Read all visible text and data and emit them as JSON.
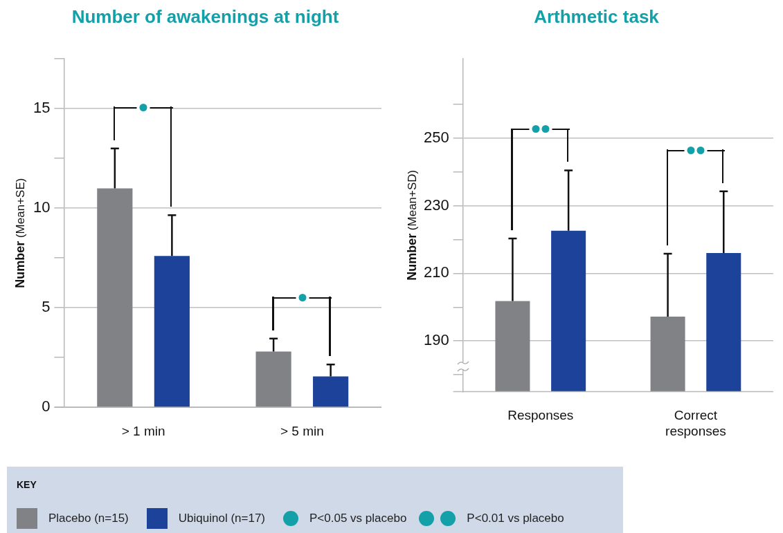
{
  "chart_data": [
    {
      "type": "bar",
      "title": "Number of awakenings at night",
      "ylabel": "Number (Mean+SE)",
      "categories": [
        "> 1 min",
        "> 5 min"
      ],
      "series": [
        {
          "name": "Placebo (n=15)",
          "color": "#808285",
          "values": [
            11.0,
            2.8
          ],
          "errors": [
            [
              11.0,
              13.0
            ],
            [
              2.8,
              3.45
            ]
          ]
        },
        {
          "name": "Ubiquinol (n=17)",
          "color": "#1d4299",
          "values": [
            7.6,
            1.55
          ],
          "errors": [
            [
              7.6,
              9.65
            ],
            [
              1.55,
              2.15
            ]
          ]
        }
      ],
      "ylim": [
        0,
        17.5
      ],
      "yticks": [
        0,
        {
          "value": 2.5,
          "label": null
        },
        5,
        {
          "value": 7.5,
          "label": null
        },
        10,
        {
          "value": 12.5,
          "label": null
        },
        15,
        {
          "value": 17.5,
          "label": null
        }
      ],
      "grid": "y",
      "legend": "bottom",
      "legend_title": "KEY",
      "annotations": [
        "P<0.05 vs placebo",
        "P<0.01 vs placebo"
      ]
    },
    {
      "type": "bar",
      "title": "Arthmetic task",
      "ylabel": "Number (Mean+SD)",
      "categories": [
        "Responses",
        "Correct responses"
      ],
      "series": [
        {
          "color": "#808285",
          "values": [
            201.8,
            197.2
          ],
          "errors": [
            [
              201.8,
              220.3
            ],
            [
              197.2,
              215.8
            ]
          ]
        },
        {
          "color": "#1d4299",
          "values": [
            222.6,
            216.0
          ],
          "errors": [
            [
              222.6,
              240.5
            ],
            [
              216.0,
              234.3
            ]
          ]
        }
      ],
      "ylim": [
        175,
        273.5
      ],
      "yticks": [
        {
          "value": 180,
          "label": null
        },
        190,
        {
          "value": 200,
          "label": null
        },
        210,
        {
          "value": 220,
          "label": null
        },
        230,
        {
          "value": 240,
          "label": null
        },
        250,
        {
          "value": 260,
          "label": null
        }
      ],
      "grid": "y"
    }
  ]
}
